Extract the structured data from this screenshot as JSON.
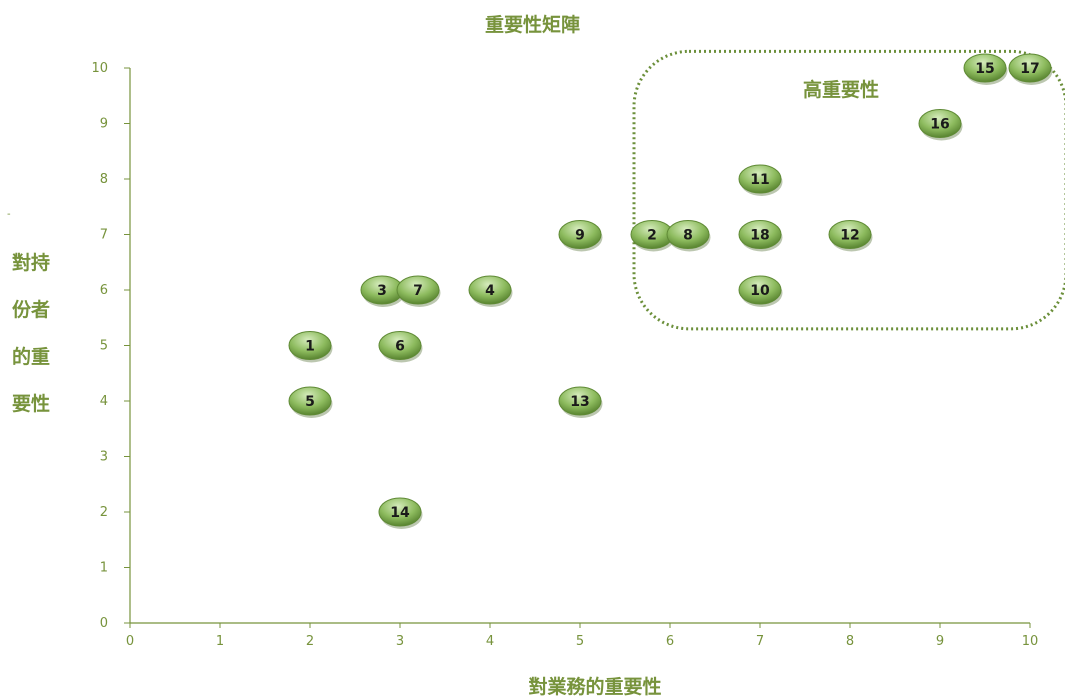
{
  "chart_data": {
    "type": "scatter",
    "title": "重要性矩陣",
    "xlabel": "對業務的重要性",
    "ylabel_lines": [
      "對持",
      "份者",
      "的重",
      "要性"
    ],
    "xlim": [
      0,
      10
    ],
    "ylim": [
      0,
      10
    ],
    "x_ticks": [
      "0",
      "1",
      "2",
      "3",
      "4",
      "5",
      "6",
      "7",
      "8",
      "9",
      "10"
    ],
    "y_ticks": [
      "0",
      "1",
      "2",
      "3",
      "4",
      "5",
      "6",
      "7",
      "8",
      "9",
      "10"
    ],
    "grid": false,
    "region": {
      "label": "高重要性",
      "x_range": [
        5.6,
        10.4
      ],
      "y_range": [
        5.3,
        10.3
      ]
    },
    "points": [
      {
        "label": "1",
        "x": 2,
        "y": 5
      },
      {
        "label": "2",
        "x": 5.8,
        "y": 7
      },
      {
        "label": "3",
        "x": 2.8,
        "y": 6
      },
      {
        "label": "4",
        "x": 4,
        "y": 6
      },
      {
        "label": "5",
        "x": 2,
        "y": 4
      },
      {
        "label": "6",
        "x": 3,
        "y": 5
      },
      {
        "label": "7",
        "x": 3.2,
        "y": 6
      },
      {
        "label": "8",
        "x": 6.2,
        "y": 7
      },
      {
        "label": "9",
        "x": 5,
        "y": 7
      },
      {
        "label": "10",
        "x": 7,
        "y": 6
      },
      {
        "label": "11",
        "x": 7,
        "y": 8
      },
      {
        "label": "12",
        "x": 8,
        "y": 7
      },
      {
        "label": "13",
        "x": 5,
        "y": 4
      },
      {
        "label": "14",
        "x": 3,
        "y": 2
      },
      {
        "label": "15",
        "x": 9.5,
        "y": 10
      },
      {
        "label": "16",
        "x": 9,
        "y": 9
      },
      {
        "label": "17",
        "x": 10,
        "y": 10
      },
      {
        "label": "18",
        "x": 7,
        "y": 7
      }
    ],
    "colors": {
      "axis": "#77933c",
      "bubble_light": "#c5e0a8",
      "bubble_dark": "#4f7a28",
      "bubble_edge": "#5f8a35",
      "text": "#77933c"
    }
  },
  "stray_mark": "-"
}
